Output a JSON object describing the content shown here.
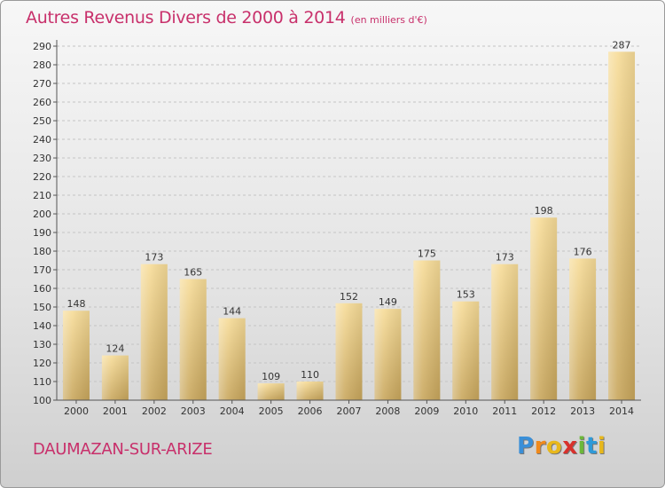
{
  "chart_data": {
    "type": "bar",
    "title": "Autres Revenus Divers de 2000 à 2014",
    "subtitle": "(en milliers d'€)",
    "categories": [
      "2000",
      "2001",
      "2002",
      "2003",
      "2004",
      "2005",
      "2006",
      "2007",
      "2008",
      "2009",
      "2010",
      "2011",
      "2012",
      "2013",
      "2014"
    ],
    "values": [
      148,
      124,
      173,
      165,
      144,
      109,
      110,
      152,
      149,
      175,
      153,
      173,
      198,
      176,
      287
    ],
    "data_labels": [
      "148",
      "124",
      "173",
      "165",
      "144",
      "109",
      "110",
      "152",
      "149",
      "175",
      "153",
      "173",
      "198",
      "176",
      "287"
    ],
    "ylim": [
      100,
      290
    ],
    "yticks": [
      100,
      110,
      120,
      130,
      140,
      150,
      160,
      170,
      180,
      190,
      200,
      210,
      220,
      230,
      240,
      250,
      260,
      270,
      280,
      290
    ],
    "grid": true,
    "bar_color": "#e8c87f"
  },
  "location": "DAUMAZAN-SUR-ARIZE",
  "logo": {
    "letters": [
      "P",
      "r",
      "o",
      "x",
      "i",
      "t",
      "i"
    ],
    "colors": [
      "#3a8fd8",
      "#f08a1c",
      "#e8b81c",
      "#d8312c",
      "#6cb83a",
      "#2f9ad8",
      "#e8b81c"
    ]
  }
}
